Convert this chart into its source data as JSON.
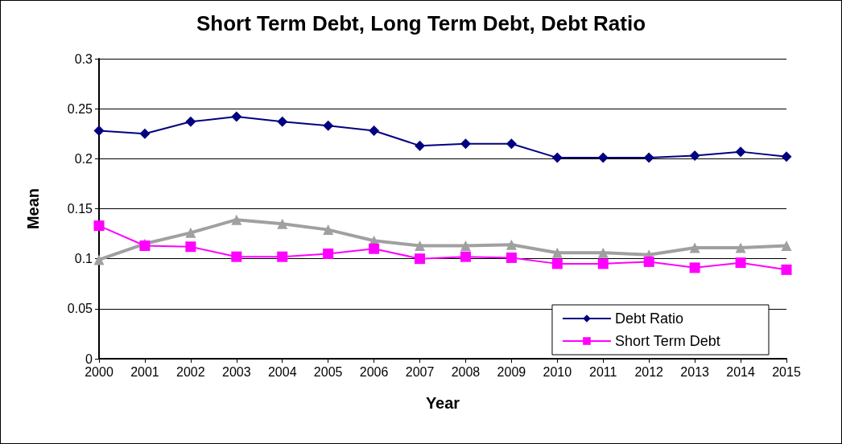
{
  "chart_data": {
    "type": "line",
    "title": "Short Term Debt, Long Term Debt, Debt Ratio",
    "xlabel": "Year",
    "ylabel": "Mean",
    "categories": [
      "2000",
      "2001",
      "2002",
      "2003",
      "2004",
      "2005",
      "2006",
      "2007",
      "2008",
      "2009",
      "2010",
      "2011",
      "2012",
      "2013",
      "2014",
      "2015"
    ],
    "series": [
      {
        "name": "Debt Ratio",
        "color": "#000080",
        "marker": "diamond",
        "values": [
          0.228,
          0.225,
          0.237,
          0.242,
          0.237,
          0.233,
          0.228,
          0.213,
          0.215,
          0.215,
          0.201,
          0.201,
          0.201,
          0.203,
          0.207,
          0.202
        ]
      },
      {
        "name": "Short Term Debt",
        "color": "#ff00ff",
        "marker": "square",
        "values": [
          0.133,
          0.113,
          0.112,
          0.102,
          0.102,
          0.105,
          0.11,
          0.1,
          0.102,
          0.101,
          0.095,
          0.095,
          0.097,
          0.091,
          0.096,
          0.089
        ]
      },
      {
        "color": "#a0a0a0",
        "marker": "triangle",
        "values": [
          0.099,
          0.115,
          0.126,
          0.139,
          0.135,
          0.129,
          0.118,
          0.113,
          0.113,
          0.114,
          0.106,
          0.106,
          0.104,
          0.111,
          0.111,
          0.113
        ]
      }
    ],
    "ylim": [
      0,
      0.3
    ],
    "yticks": [
      0,
      0.05,
      0.1,
      0.15,
      0.2,
      0.25,
      0.3
    ],
    "grid": "y",
    "legend": "bottom right"
  }
}
